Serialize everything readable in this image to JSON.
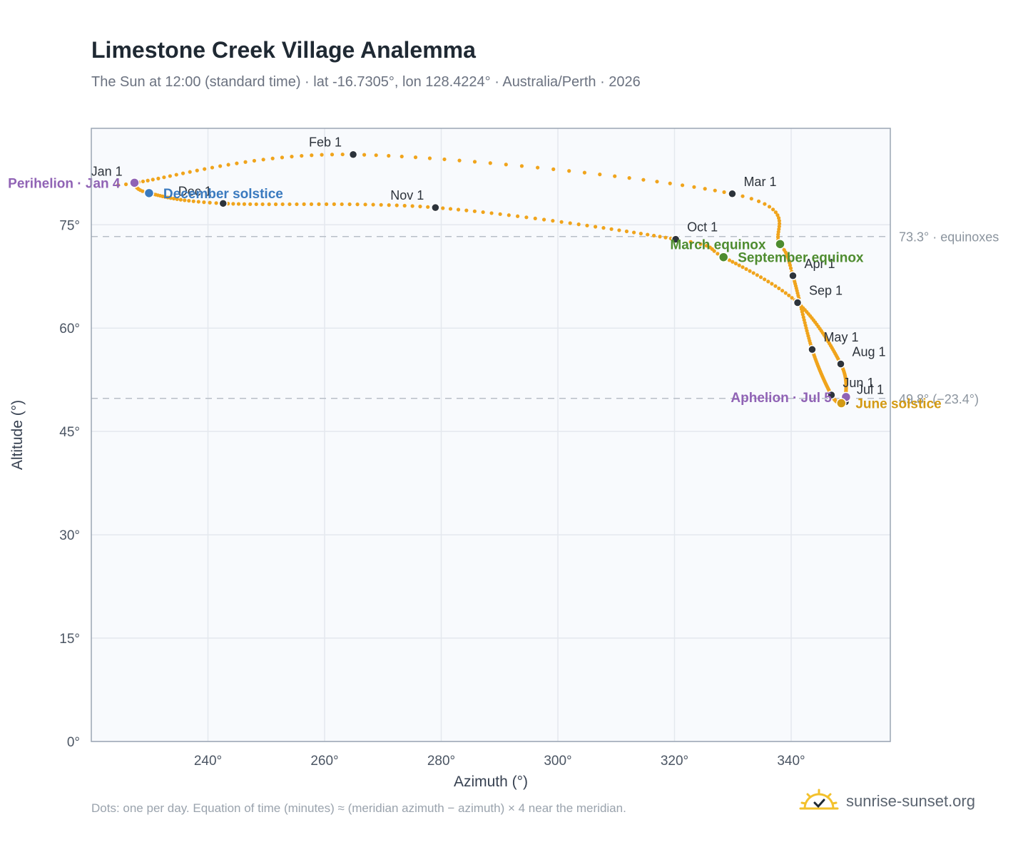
{
  "header": {
    "title": "Limestone Creek Village Analemma",
    "subtitle": "The Sun at 12:00 (standard time) · lat -16.7305°, lon 128.4224° · Australia/Perth · 2026"
  },
  "footer": {
    "note": "Dots: one per day. Equation of time (minutes) ≈ (meridian azimuth − azimuth) × 4 near the meridian.",
    "brand": "sunrise-sunset.org"
  },
  "colors": {
    "curve": "#f0a41c",
    "month_marker": "#2d333b",
    "equinox": "#4e8c2f",
    "december_solstice": "#3a7abf",
    "june_solstice": "#d39a14",
    "apsis": "#9063b5",
    "reference_line": "#b8bfc8",
    "plot_background": "#f8fafd",
    "grid": "#e4e8ee"
  },
  "chart_data": {
    "type": "scatter",
    "title": "Limestone Creek Village Analemma",
    "xlabel": "Azimuth (°)",
    "ylabel": "Altitude (°)",
    "xlim": [
      220,
      357
    ],
    "ylim": [
      0,
      89
    ],
    "x_ticks": [
      240,
      260,
      280,
      300,
      320,
      340
    ],
    "x_tick_labels": [
      "240°",
      "260°",
      "280°",
      "300°",
      "320°",
      "340°"
    ],
    "y_ticks": [
      0,
      15,
      30,
      45,
      60,
      75
    ],
    "y_tick_labels": [
      "0°",
      "15°",
      "30°",
      "45°",
      "60°",
      "75°"
    ],
    "grid": true,
    "series": [
      {
        "marker": "dot",
        "style": "one point per day",
        "anchors": [
          {
            "day": 1,
            "az": 227.3,
            "alt": 81.0
          },
          {
            "day": 4,
            "az": 227.4,
            "alt": 81.1
          },
          {
            "day": 32,
            "az": 264.9,
            "alt": 85.2
          },
          {
            "day": 60,
            "az": 329.9,
            "alt": 79.5
          },
          {
            "day": 79,
            "az": 338.1,
            "alt": 72.2
          },
          {
            "day": 91,
            "az": 340.3,
            "alt": 67.6
          },
          {
            "day": 121,
            "az": 343.6,
            "alt": 56.9
          },
          {
            "day": 152,
            "az": 346.9,
            "alt": 50.3
          },
          {
            "day": 172,
            "az": 348.6,
            "alt": 49.1
          },
          {
            "day": 182,
            "az": 349.3,
            "alt": 49.3
          },
          {
            "day": 186,
            "az": 349.4,
            "alt": 50.0
          },
          {
            "day": 213,
            "az": 348.5,
            "alt": 54.8
          },
          {
            "day": 244,
            "az": 341.1,
            "alt": 63.7
          },
          {
            "day": 266,
            "az": 328.4,
            "alt": 70.3
          },
          {
            "day": 274,
            "az": 320.2,
            "alt": 72.9
          },
          {
            "day": 305,
            "az": 279.0,
            "alt": 77.5
          },
          {
            "day": 335,
            "az": 242.6,
            "alt": 78.1
          },
          {
            "day": 355,
            "az": 229.9,
            "alt": 79.6
          },
          {
            "day": 366,
            "az": 227.3,
            "alt": 81.0
          }
        ]
      }
    ],
    "month_markers": [
      {
        "label": "Jan 1",
        "az": 227.3,
        "alt": 81.0,
        "anchor": "end"
      },
      {
        "label": "Feb 1",
        "az": 264.9,
        "alt": 85.2,
        "anchor": "end"
      },
      {
        "label": "Mar 1",
        "az": 329.9,
        "alt": 79.5,
        "anchor": "start"
      },
      {
        "label": "Apr 1",
        "az": 340.3,
        "alt": 67.6,
        "anchor": "start"
      },
      {
        "label": "May 1",
        "az": 343.6,
        "alt": 56.9,
        "anchor": "start"
      },
      {
        "label": "Jun 1",
        "az": 346.9,
        "alt": 50.3,
        "anchor": "start"
      },
      {
        "label": "Jul 1",
        "az": 349.3,
        "alt": 49.3,
        "anchor": "start"
      },
      {
        "label": "Aug 1",
        "az": 348.5,
        "alt": 54.8,
        "anchor": "start"
      },
      {
        "label": "Sep 1",
        "az": 341.1,
        "alt": 63.7,
        "anchor": "start"
      },
      {
        "label": "Oct 1",
        "az": 320.2,
        "alt": 72.9,
        "anchor": "start"
      },
      {
        "label": "Nov 1",
        "az": 279.0,
        "alt": 77.5,
        "anchor": "end"
      },
      {
        "label": "Dec 1",
        "az": 242.6,
        "alt": 78.1,
        "anchor": "end"
      }
    ],
    "events": [
      {
        "label": "Perihelion · Jan 4",
        "az": 227.4,
        "alt": 81.1,
        "kind": "apsis",
        "anchor": "end"
      },
      {
        "label": "December solstice",
        "az": 229.9,
        "alt": 79.6,
        "kind": "december_solstice",
        "anchor": "start"
      },
      {
        "label": "March equinox",
        "az": 338.1,
        "alt": 72.2,
        "kind": "equinox",
        "anchor": "end"
      },
      {
        "label": "September equinox",
        "az": 328.4,
        "alt": 70.3,
        "kind": "equinox",
        "anchor": "start"
      },
      {
        "label": "Aphelion · Jul 5",
        "az": 349.4,
        "alt": 50.0,
        "kind": "apsis",
        "anchor": "end"
      },
      {
        "label": "June solstice",
        "az": 348.6,
        "alt": 49.1,
        "kind": "june_solstice",
        "anchor": "start"
      }
    ],
    "reference_lines": [
      {
        "alt": 73.3,
        "label": "73.3° · equinoxes"
      },
      {
        "alt": 49.8,
        "label": "49.8° (−23.4°)"
      }
    ]
  }
}
